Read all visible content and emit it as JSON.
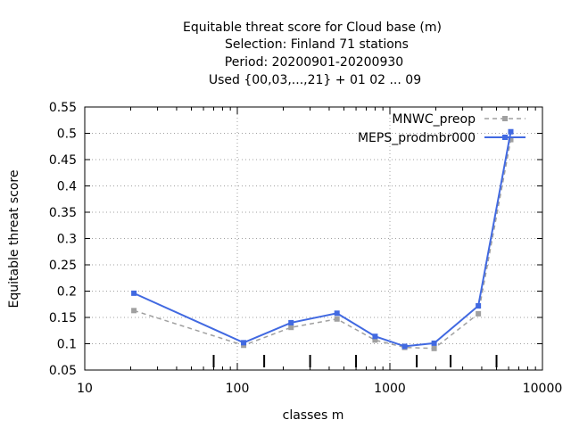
{
  "title_lines": [
    "Equitable threat score  for Cloud base (m)",
    "Selection: Finland     71 stations",
    "Period: 20200901-20200930",
    "Used {00,03,...,21} + 01 02 ... 09"
  ],
  "chart_data": {
    "type": "line",
    "xlabel": "classes m",
    "ylabel": "Equitable threat score",
    "x_scale": "log",
    "xlim": [
      10,
      10000
    ],
    "ylim": [
      0.05,
      0.55
    ],
    "x_ticks": [
      10,
      100,
      1000,
      10000
    ],
    "x_tick_labels": [
      "10",
      "100",
      "1000",
      "10000"
    ],
    "y_ticks": [
      0.05,
      0.1,
      0.15,
      0.2,
      0.25,
      0.3,
      0.35,
      0.4,
      0.45,
      0.5,
      0.55
    ],
    "y_tick_labels": [
      "0.05",
      "0.1",
      "0.15",
      "0.2",
      "0.25",
      "0.3",
      "0.35",
      "0.4",
      "0.45",
      "0.5",
      "0.55"
    ],
    "grid": true,
    "legend_position": "top-right",
    "class_threshold_marks": [
      70,
      150,
      300,
      600,
      1500,
      2500,
      5000
    ],
    "series": [
      {
        "name": "MNWC_preop",
        "color": "#a0a0a0",
        "style": "dashed",
        "x": [
          21,
          110,
          225,
          450,
          800,
          1250,
          1950,
          3800,
          6200
        ],
        "y": [
          0.163,
          0.097,
          0.131,
          0.147,
          0.107,
          0.093,
          0.091,
          0.157,
          0.488
        ]
      },
      {
        "name": "MEPS_prodmbr000",
        "color": "#4169e1",
        "style": "solid",
        "x": [
          21,
          110,
          225,
          450,
          800,
          1250,
          1950,
          3800,
          6200
        ],
        "y": [
          0.196,
          0.102,
          0.14,
          0.158,
          0.114,
          0.095,
          0.101,
          0.172,
          0.503
        ]
      }
    ]
  }
}
